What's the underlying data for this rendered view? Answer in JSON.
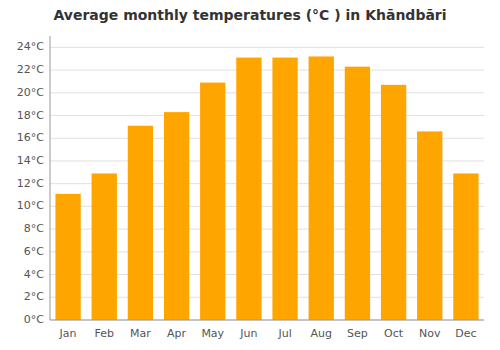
{
  "chart_data": {
    "type": "bar",
    "title": "Average monthly temperatures (°C ) in Khāndbāri",
    "categories": [
      "Jan",
      "Feb",
      "Mar",
      "Apr",
      "May",
      "Jun",
      "Jul",
      "Aug",
      "Sep",
      "Oct",
      "Nov",
      "Dec"
    ],
    "values": [
      11.1,
      12.9,
      17.1,
      18.3,
      20.9,
      23.1,
      23.1,
      23.2,
      22.3,
      20.7,
      16.6,
      12.9
    ],
    "color": "#FFA500",
    "ylim": [
      0,
      25
    ],
    "yticks": [
      {
        "value": 0,
        "label": "0°C"
      },
      {
        "value": 2,
        "label": "2°C"
      },
      {
        "value": 4,
        "label": "4°C"
      },
      {
        "value": 6,
        "label": "6°C"
      },
      {
        "value": 8,
        "label": "8°C"
      },
      {
        "value": 10,
        "label": "10°C"
      },
      {
        "value": 12,
        "label": "12°C"
      },
      {
        "value": 14,
        "label": "14°C"
      },
      {
        "value": 16,
        "label": "16°C"
      },
      {
        "value": 18,
        "label": "18°C"
      },
      {
        "value": 20,
        "label": "20°C"
      },
      {
        "value": 22,
        "label": "22°C"
      },
      {
        "value": 24,
        "label": "24°C"
      }
    ],
    "grid": true
  }
}
